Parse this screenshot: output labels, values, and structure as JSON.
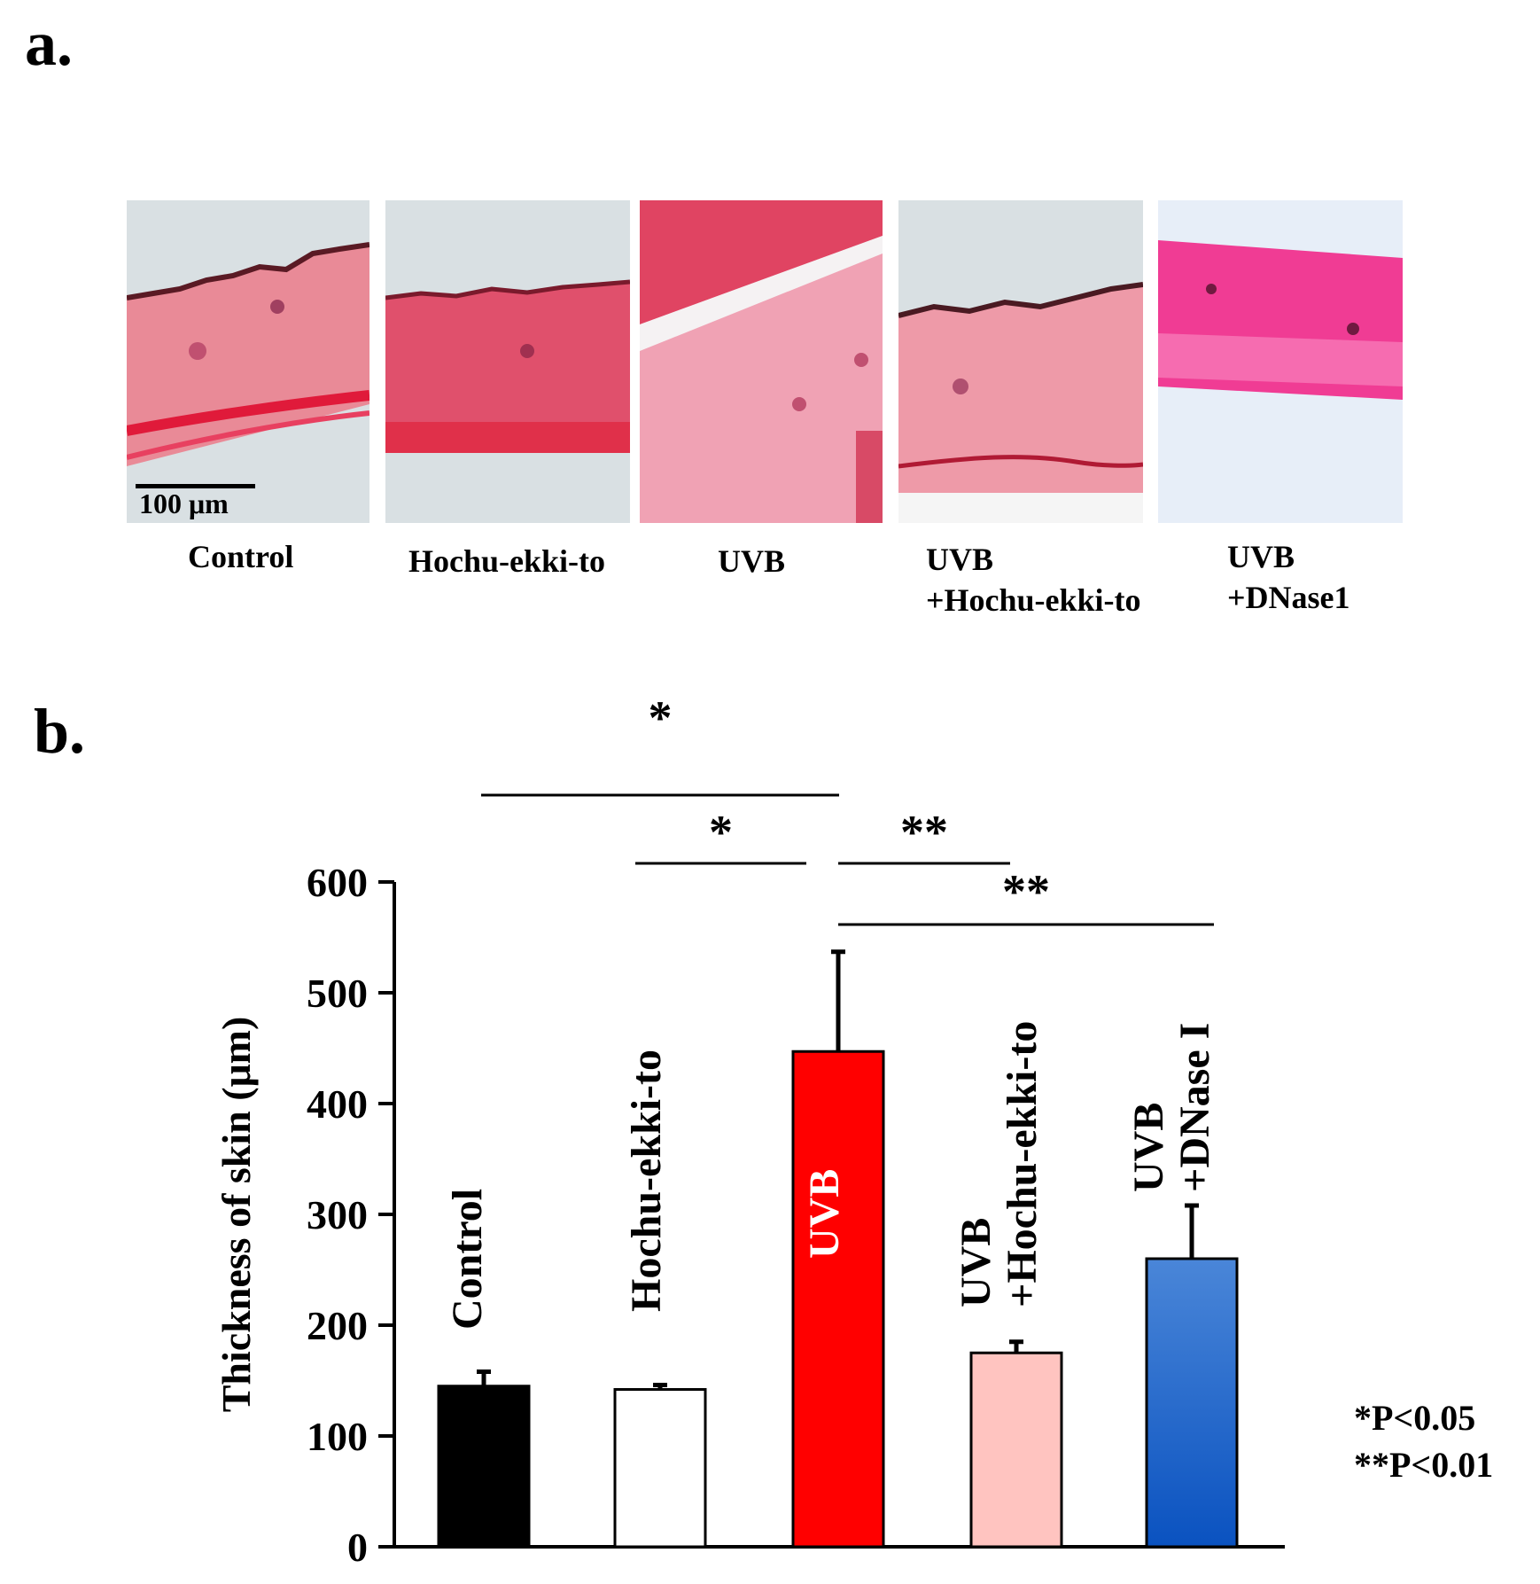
{
  "panel_a": {
    "label": "a.",
    "scale_bar": "100 μm",
    "captions": [
      "Control",
      "Hochu-ekki-to",
      "UVB",
      "UVB\n+Hochu-ekki-to",
      "UVB\n+DNase1"
    ]
  },
  "panel_b": {
    "label": "b.",
    "p_notes": [
      "*P<0.05",
      "**P<0.01"
    ]
  },
  "chart_data": {
    "type": "bar",
    "title": "",
    "xlabel": "",
    "ylabel": "Thickness of skin (μm)",
    "ylim": [
      0,
      600
    ],
    "yticks": [
      0,
      100,
      200,
      300,
      400,
      500,
      600
    ],
    "categories": [
      "Control",
      "Hochu-ekki-to",
      "UVB",
      "UVB\n+Hochu-ekki-to",
      "UVB\n+DNase I"
    ],
    "values": [
      145,
      142,
      447,
      175,
      260
    ],
    "errors": [
      13,
      4,
      90,
      10,
      48
    ],
    "colors": [
      "#000000",
      "#ffffff",
      "#ff0000",
      "#ffc4c0",
      "#1f5fc4"
    ],
    "significance": [
      {
        "from": 1,
        "to": 3,
        "label": "*"
      },
      {
        "from": 2,
        "to": 3,
        "label": "*"
      },
      {
        "from": 3,
        "to": 4,
        "label": "**"
      },
      {
        "from": 3,
        "to": 5,
        "label": "**"
      }
    ]
  }
}
